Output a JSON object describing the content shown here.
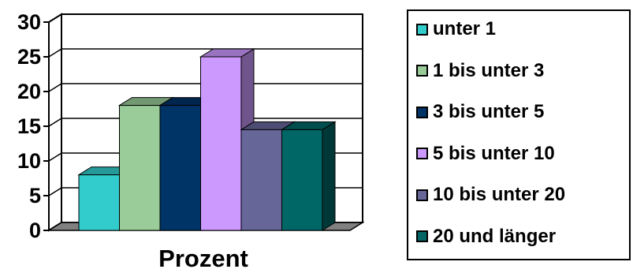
{
  "chart_data": {
    "type": "bar",
    "categories": [
      "Prozent"
    ],
    "xlabel": "Prozent",
    "ylabel": "",
    "ylim": [
      0,
      30
    ],
    "yticks": [
      0,
      5,
      10,
      15,
      20,
      25,
      30
    ],
    "grid": true,
    "legend_position": "right",
    "series": [
      {
        "name": "unter 1",
        "values": [
          8
        ],
        "color": "#33cccc"
      },
      {
        "name": "1 bis unter 3",
        "values": [
          18
        ],
        "color": "#99cc99"
      },
      {
        "name": "3 bis unter 5",
        "values": [
          18
        ],
        "color": "#003366"
      },
      {
        "name": "5 bis unter 10",
        "values": [
          25
        ],
        "color": "#cc99ff"
      },
      {
        "name": "10 bis unter 20",
        "values": [
          14.5
        ],
        "color": "#666699"
      },
      {
        "name": "20 und länger",
        "values": [
          14.5
        ],
        "color": "#006666"
      }
    ]
  }
}
